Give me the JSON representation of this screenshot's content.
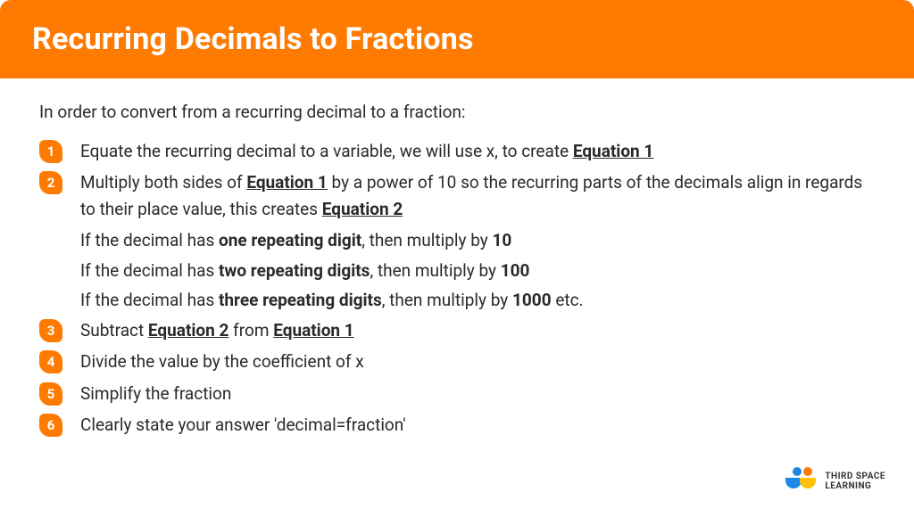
{
  "header": {
    "title": "Recurring Decimals to Fractions",
    "bg_color": "#ff7a00",
    "text_color": "#ffffff"
  },
  "intro": "In order to convert from a recurring decimal to a fraction:",
  "steps": [
    {
      "num": "1",
      "html": "Equate the recurring decimal to a variable, we will use x, to create <span class='eq'>Equation 1</span>"
    },
    {
      "num": "2",
      "html": "Multiply both sides of <span class='eq'>Equation 1</span> by a power of 10 so the recurring parts of the decimals align in regards to their place value, this creates <span class='eq'>Equation 2</span>",
      "sublines": [
        "If the decimal has <b>one repeating digit</b>, then multiply by <b>10</b>",
        "If the decimal has <b>two repeating digits</b>, then multiply by <b>100</b>",
        "If the decimal has <b>three repeating digits</b>, then multiply by <b>1000</b> etc."
      ]
    },
    {
      "num": "3",
      "html": "Subtract <span class='eq'>Equation 2</span> from <span class='eq'>Equation 1</span>"
    },
    {
      "num": "4",
      "html": "Divide the value by the coefficient of x"
    },
    {
      "num": "5",
      "html": "Simplify the fraction"
    },
    {
      "num": "6",
      "html": "Clearly state your answer 'decimal=fraction'"
    }
  ],
  "logo": {
    "line1": "THIRD SPACE",
    "line2": "LEARNING",
    "blue": "#1e88e5",
    "orange": "#ff7a00",
    "yellow": "#ffc107"
  },
  "styling": {
    "body_font_size": 19,
    "title_font_size": 34,
    "badge_bg": "#ff7a00",
    "text_color": "#2a2a2a",
    "card_bg": "#ffffff"
  }
}
